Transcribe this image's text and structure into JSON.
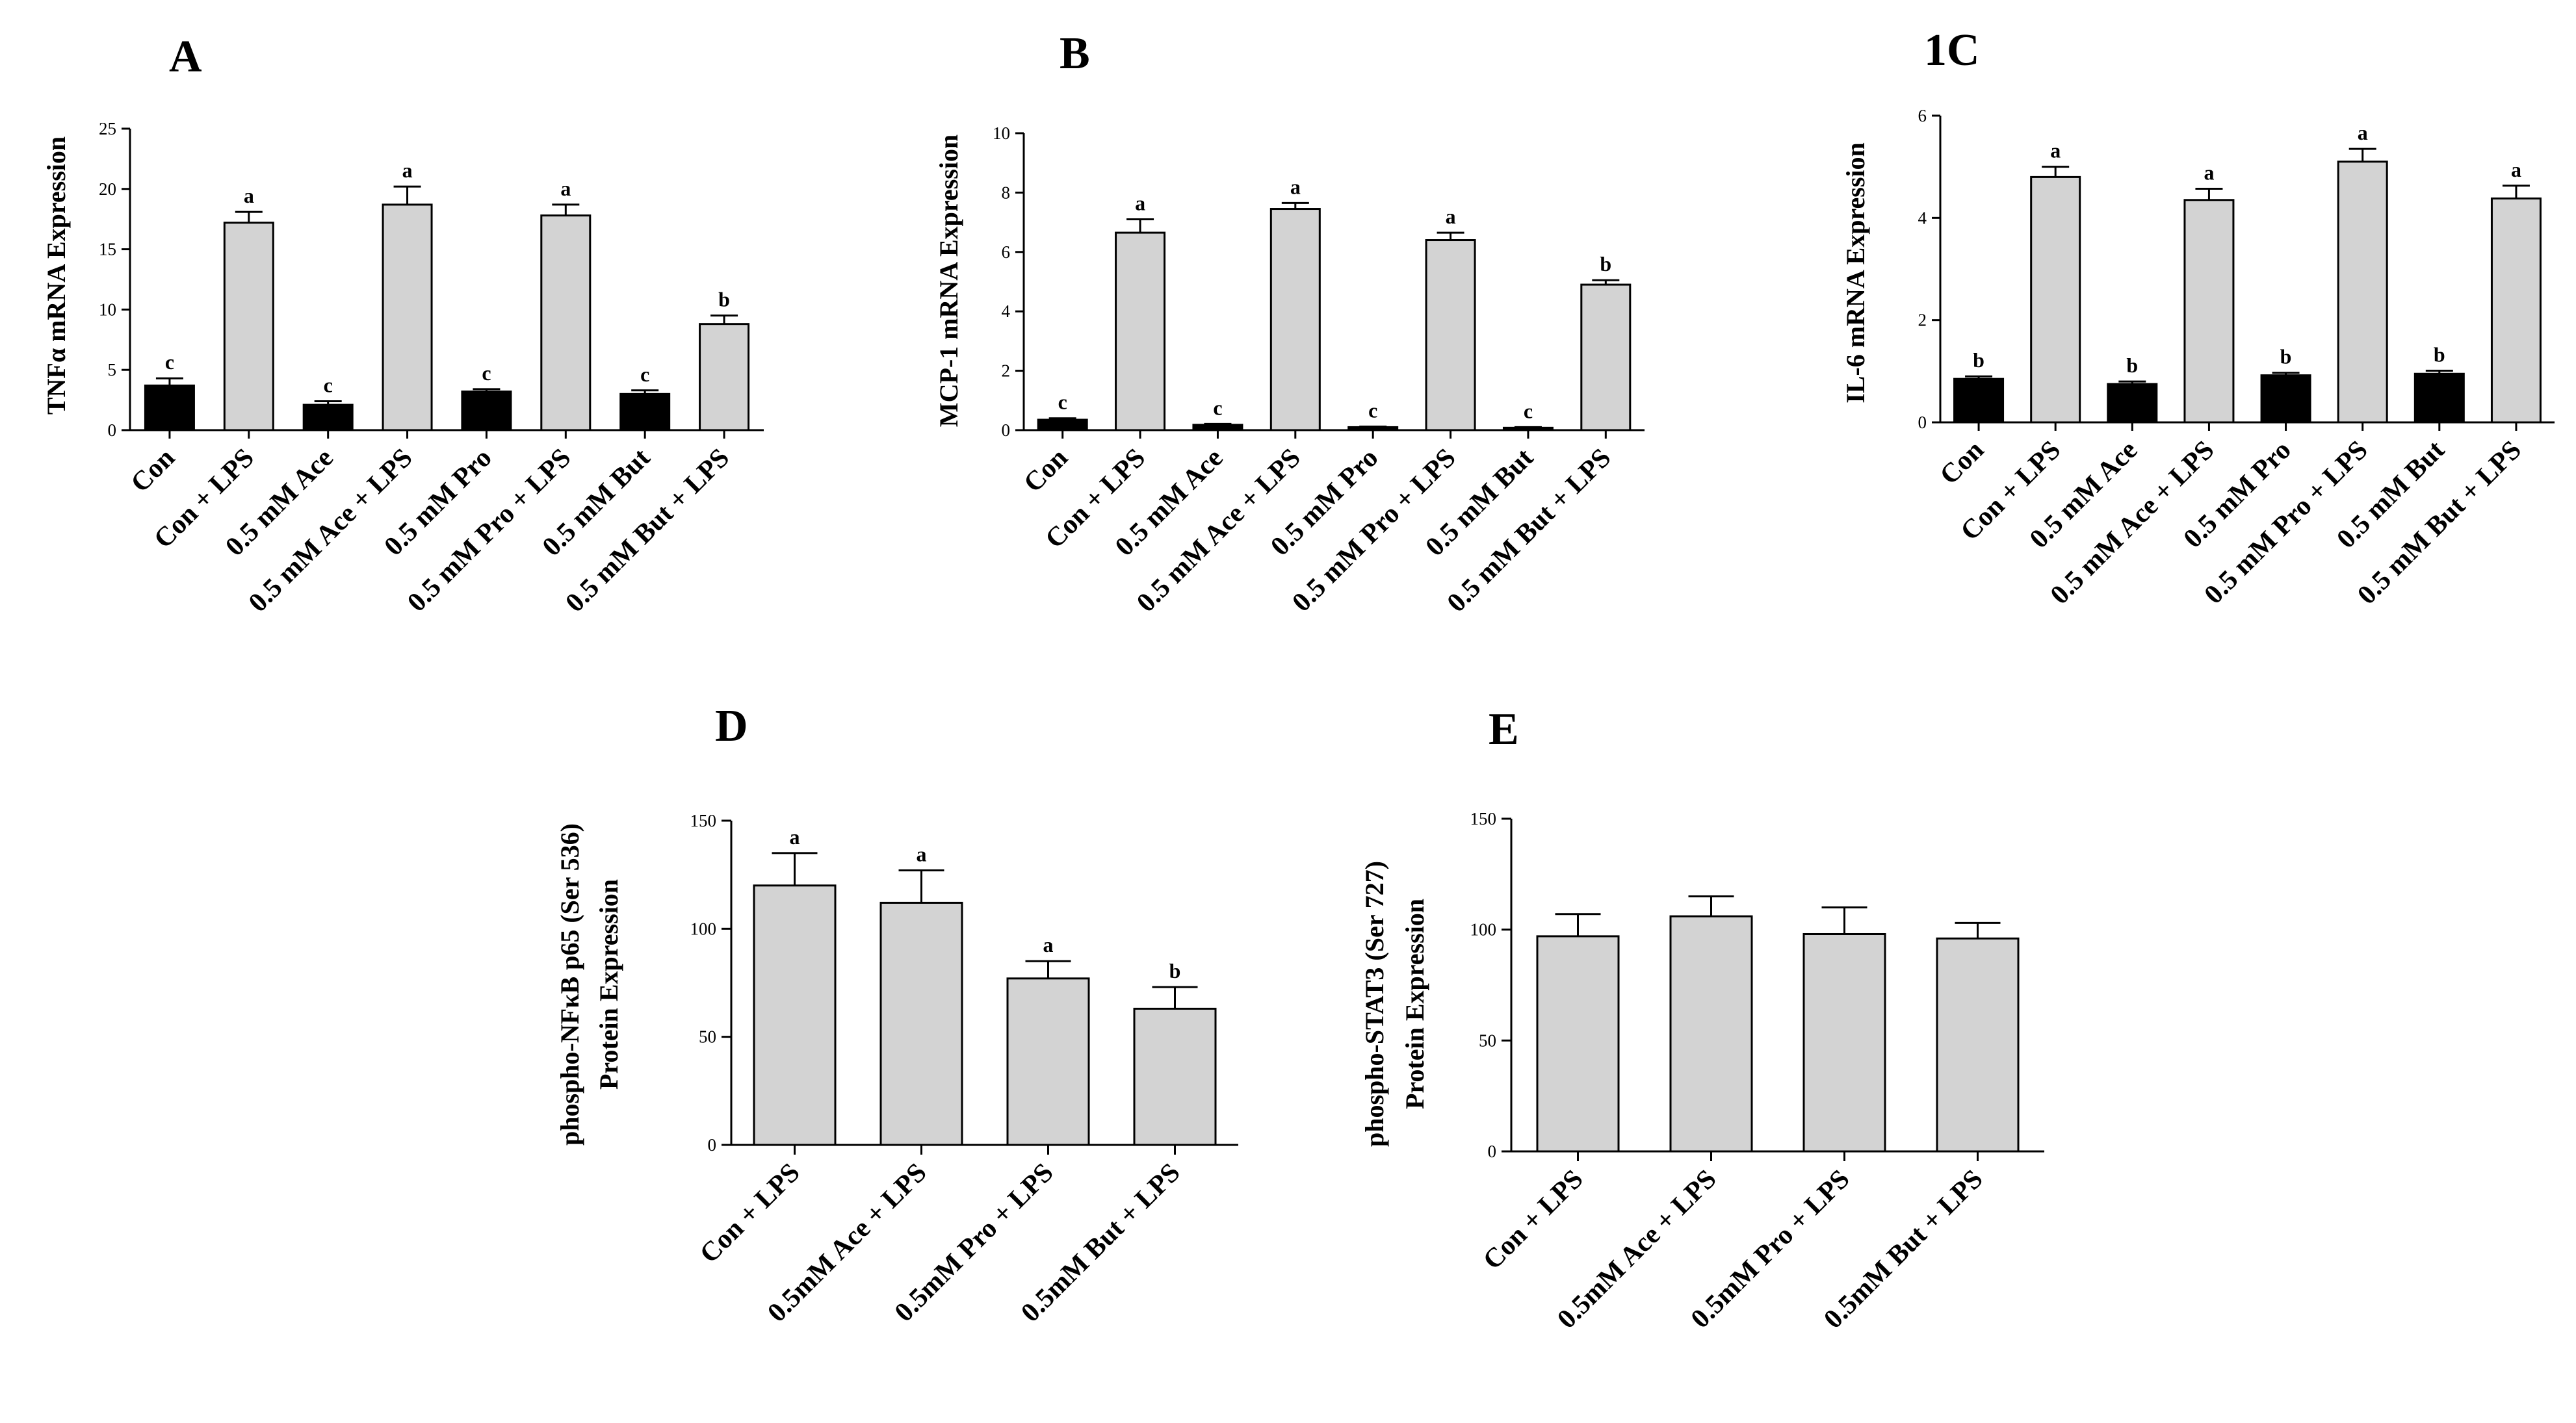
{
  "chart_data": [
    {
      "type": "bar",
      "panel": "A",
      "title": "",
      "xlabel": "",
      "ylabel": "TNFα mRNA Expression",
      "ylim": [
        0,
        25
      ],
      "yticks": [
        0,
        5,
        10,
        15,
        20,
        25
      ],
      "categories": [
        "Con",
        "Con + LPS",
        "0.5 mM Ace",
        "0.5 mM Ace + LPS",
        "0.5 mM Pro",
        "0.5 mM Pro + LPS",
        "0.5 mM But",
        "0.5 mM But + LPS"
      ],
      "values": [
        3.7,
        17.2,
        2.1,
        18.7,
        3.2,
        17.8,
        3.0,
        8.8
      ],
      "errors": [
        0.6,
        0.9,
        0.3,
        1.5,
        0.2,
        0.9,
        0.3,
        0.7
      ],
      "bar_colors": [
        "#000000",
        "#d3d3d3",
        "#000000",
        "#d3d3d3",
        "#000000",
        "#d3d3d3",
        "#000000",
        "#d3d3d3"
      ],
      "annotations": [
        "c",
        "a",
        "c",
        "a",
        "c",
        "a",
        "c",
        "b"
      ]
    },
    {
      "type": "bar",
      "panel": "B",
      "title": "",
      "xlabel": "",
      "ylabel": "MCP-1 mRNA Expression",
      "ylim": [
        0,
        10
      ],
      "yticks": [
        0,
        2,
        4,
        6,
        8,
        10
      ],
      "categories": [
        "Con",
        "Con + LPS",
        "0.5 mM Ace",
        "0.5 mM Ace + LPS",
        "0.5 mM Pro",
        "0.5 mM Pro + LPS",
        "0.5 mM But",
        "0.5 mM But + LPS"
      ],
      "values": [
        0.35,
        6.65,
        0.18,
        7.45,
        0.1,
        6.4,
        0.08,
        4.9
      ],
      "errors": [
        0.05,
        0.45,
        0.03,
        0.2,
        0.02,
        0.25,
        0.02,
        0.15
      ],
      "bar_colors": [
        "#000000",
        "#d3d3d3",
        "#000000",
        "#d3d3d3",
        "#000000",
        "#d3d3d3",
        "#000000",
        "#d3d3d3"
      ],
      "annotations": [
        "c",
        "a",
        "c",
        "a",
        "c",
        "a",
        "c",
        "b"
      ]
    },
    {
      "type": "bar",
      "panel": "1C",
      "title": "",
      "xlabel": "",
      "ylabel": "IL-6 mRNA Expression",
      "ylim": [
        0,
        6
      ],
      "yticks": [
        0,
        2,
        4,
        6
      ],
      "categories": [
        "Con",
        "Con + LPS",
        "0.5 mM Ace",
        "0.5 mM Ace + LPS",
        "0.5 mM Pro",
        "0.5 mM Pro + LPS",
        "0.5 mM But",
        "0.5 mM But + LPS"
      ],
      "values": [
        0.85,
        4.8,
        0.75,
        4.35,
        0.92,
        5.1,
        0.95,
        4.38
      ],
      "errors": [
        0.05,
        0.2,
        0.05,
        0.22,
        0.05,
        0.25,
        0.06,
        0.25
      ],
      "bar_colors": [
        "#000000",
        "#d3d3d3",
        "#000000",
        "#d3d3d3",
        "#000000",
        "#d3d3d3",
        "#000000",
        "#d3d3d3"
      ],
      "annotations": [
        "b",
        "a",
        "b",
        "a",
        "b",
        "a",
        "b",
        "a"
      ]
    },
    {
      "type": "bar",
      "panel": "D",
      "title": "",
      "xlabel": "",
      "ylabel": "phospho-NFκB p65 (Ser 536)",
      "ylabel2": "Protein Expression",
      "ylim": [
        0,
        150
      ],
      "yticks": [
        0,
        50,
        100,
        150
      ],
      "categories": [
        "Con + LPS",
        "0.5mM Ace + LPS",
        "0.5mM Pro + LPS",
        "0.5mM But + LPS"
      ],
      "values": [
        120,
        112,
        77,
        63
      ],
      "errors": [
        15,
        15,
        8,
        10
      ],
      "bar_colors": [
        "#d3d3d3",
        "#d3d3d3",
        "#d3d3d3",
        "#d3d3d3"
      ],
      "annotations": [
        "a",
        "a",
        "a",
        "b"
      ]
    },
    {
      "type": "bar",
      "panel": "E",
      "title": "",
      "xlabel": "",
      "ylabel": "phospho-STAT3  (Ser 727)",
      "ylabel2": "Protein Expression",
      "ylim": [
        0,
        150
      ],
      "yticks": [
        0,
        50,
        100,
        150
      ],
      "categories": [
        "Con + LPS",
        "0.5mM Ace + LPS",
        "0.5mM Pro + LPS",
        "0.5mM But + LPS"
      ],
      "values": [
        97,
        106,
        98,
        96
      ],
      "errors": [
        10,
        9,
        12,
        7
      ],
      "bar_colors": [
        "#d3d3d3",
        "#d3d3d3",
        "#d3d3d3",
        "#d3d3d3"
      ],
      "annotations": [
        "",
        "",
        "",
        ""
      ]
    }
  ]
}
